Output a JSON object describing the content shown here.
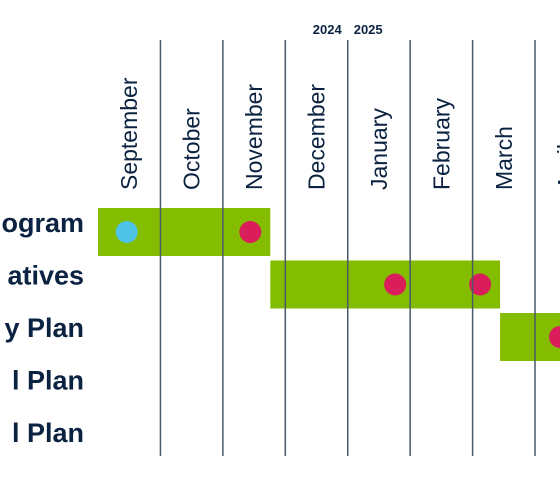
{
  "chart_data": {
    "type": "gantt",
    "categories": [
      "September",
      "October",
      "November",
      "December",
      "January",
      "February",
      "March",
      "April"
    ],
    "year_labels": [
      "2024",
      "2025"
    ],
    "year_boundary": 4,
    "xlim": [
      0,
      7.4
    ],
    "xticks": [
      1,
      2,
      3,
      4,
      5,
      6,
      7
    ],
    "grid": true,
    "bar_color": "#84bd00",
    "tasks": [
      {
        "name": "ogram",
        "start": 0,
        "end": 2.76,
        "milestones": [
          {
            "x": 0.46,
            "color": "#4dc3e8"
          },
          {
            "x": 2.44,
            "color": "#d91e5b"
          }
        ]
      },
      {
        "name": "atives",
        "start": 2.76,
        "end": 6.44,
        "milestones": [
          {
            "x": 4.76,
            "color": "#d91e5b"
          },
          {
            "x": 6.12,
            "color": "#d91e5b"
          }
        ]
      },
      {
        "name": "y Plan",
        "start": 6.44,
        "end": 7.4,
        "milestones": [
          {
            "x": 7.4,
            "color": "#d91e5b"
          }
        ]
      },
      {
        "name": "l Plan"
      },
      {
        "name": "l Plan"
      }
    ]
  }
}
